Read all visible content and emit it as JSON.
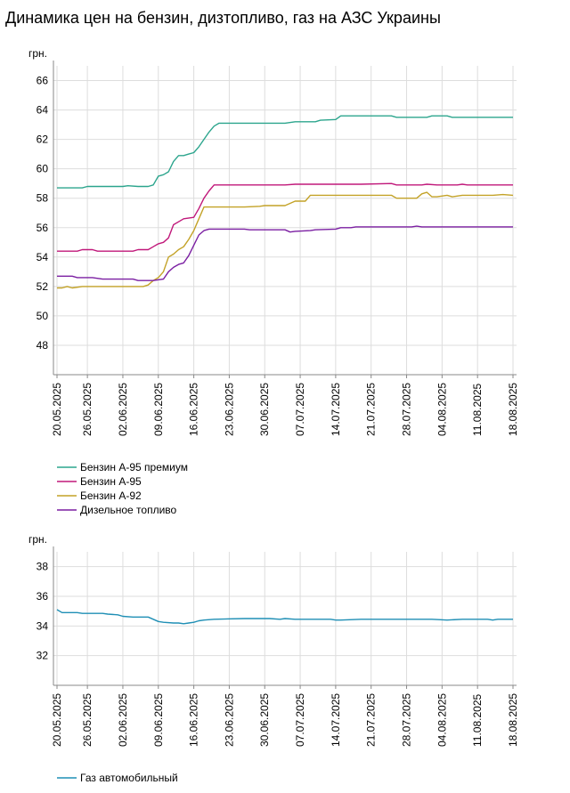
{
  "title": "Динамика цен на бензин, дизтопливо, газ на АЗС Украины",
  "chart_data": [
    {
      "type": "line",
      "ylabel": "грн.",
      "ylim": [
        46,
        67
      ],
      "yticks": [
        48,
        50,
        52,
        54,
        56,
        58,
        60,
        62,
        64,
        66
      ],
      "grid": true,
      "legend": "bottom-left",
      "x": [
        "20.05.2025",
        "26.05.2025",
        "02.06.2025",
        "09.06.2025",
        "16.06.2025",
        "23.06.2025",
        "30.06.2025",
        "07.07.2025",
        "14.07.2025",
        "21.07.2025",
        "28.07.2025",
        "04.08.2025",
        "11.08.2025",
        "18.08.2025"
      ],
      "series": [
        {
          "name": "Бензин А-95 премиум",
          "color": "#2ca58d",
          "points": [
            [
              0,
              58.7
            ],
            [
              2,
              58.7
            ],
            [
              5,
              58.7
            ],
            [
              6,
              58.8
            ],
            [
              10,
              58.8
            ],
            [
              13,
              58.8
            ],
            [
              14,
              58.85
            ],
            [
              16,
              58.8
            ],
            [
              17,
              58.8
            ],
            [
              18,
              58.8
            ],
            [
              19,
              58.9
            ],
            [
              20,
              59.5
            ],
            [
              21,
              59.6
            ],
            [
              22,
              59.8
            ],
            [
              23,
              60.5
            ],
            [
              24,
              60.9
            ],
            [
              25,
              60.9
            ],
            [
              26,
              61.0
            ],
            [
              27,
              61.1
            ],
            [
              28,
              61.5
            ],
            [
              29,
              62.0
            ],
            [
              30,
              62.5
            ],
            [
              31,
              62.9
            ],
            [
              32,
              63.1
            ],
            [
              37,
              63.1
            ],
            [
              40,
              63.1
            ],
            [
              45,
              63.1
            ],
            [
              47,
              63.2
            ],
            [
              51,
              63.2
            ],
            [
              52,
              63.3
            ],
            [
              55,
              63.35
            ],
            [
              56,
              63.6
            ],
            [
              60,
              63.6
            ],
            [
              66,
              63.6
            ],
            [
              67,
              63.5
            ],
            [
              73,
              63.5
            ],
            [
              74,
              63.6
            ],
            [
              77,
              63.6
            ],
            [
              78,
              63.5
            ],
            [
              90,
              63.5
            ]
          ]
        },
        {
          "name": "Бензин А-95",
          "color": "#c0187a",
          "points": [
            [
              0,
              54.4
            ],
            [
              4,
              54.4
            ],
            [
              5,
              54.5
            ],
            [
              7,
              54.5
            ],
            [
              8,
              54.4
            ],
            [
              15,
              54.4
            ],
            [
              16,
              54.5
            ],
            [
              18,
              54.5
            ],
            [
              19,
              54.7
            ],
            [
              20,
              54.9
            ],
            [
              21,
              55.0
            ],
            [
              22,
              55.3
            ],
            [
              23,
              56.2
            ],
            [
              24,
              56.4
            ],
            [
              25,
              56.6
            ],
            [
              27,
              56.7
            ],
            [
              28,
              57.3
            ],
            [
              29,
              58.0
            ],
            [
              30,
              58.5
            ],
            [
              31,
              58.9
            ],
            [
              37,
              58.9
            ],
            [
              45,
              58.9
            ],
            [
              47,
              58.95
            ],
            [
              51,
              58.95
            ],
            [
              55,
              58.95
            ],
            [
              56,
              58.95
            ],
            [
              60,
              58.95
            ],
            [
              66,
              59.0
            ],
            [
              67,
              58.9
            ],
            [
              72,
              58.9
            ],
            [
              73,
              58.95
            ],
            [
              75,
              58.9
            ],
            [
              79,
              58.9
            ],
            [
              80,
              58.95
            ],
            [
              81,
              58.9
            ],
            [
              90,
              58.9
            ]
          ]
        },
        {
          "name": "Бензин А-92",
          "color": "#c3a227",
          "points": [
            [
              0,
              51.9
            ],
            [
              1,
              51.9
            ],
            [
              2,
              52.0
            ],
            [
              3,
              51.9
            ],
            [
              5,
              52.0
            ],
            [
              17,
              52.0
            ],
            [
              18,
              52.1
            ],
            [
              19,
              52.4
            ],
            [
              20,
              52.6
            ],
            [
              21,
              53.0
            ],
            [
              22,
              54.0
            ],
            [
              23,
              54.2
            ],
            [
              24,
              54.5
            ],
            [
              25,
              54.7
            ],
            [
              26,
              55.2
            ],
            [
              27,
              55.8
            ],
            [
              28,
              56.6
            ],
            [
              29,
              57.4
            ],
            [
              31,
              57.4
            ],
            [
              37,
              57.4
            ],
            [
              40,
              57.45
            ],
            [
              41,
              57.5
            ],
            [
              45,
              57.5
            ],
            [
              47,
              57.8
            ],
            [
              48,
              57.8
            ],
            [
              49,
              57.8
            ],
            [
              50,
              58.2
            ],
            [
              55,
              58.2
            ],
            [
              60,
              58.2
            ],
            [
              66,
              58.2
            ],
            [
              67,
              58.0
            ],
            [
              71,
              58.0
            ],
            [
              72,
              58.3
            ],
            [
              73,
              58.4
            ],
            [
              74,
              58.1
            ],
            [
              75,
              58.1
            ],
            [
              77,
              58.2
            ],
            [
              78,
              58.1
            ],
            [
              80,
              58.2
            ],
            [
              86,
              58.2
            ],
            [
              88,
              58.25
            ],
            [
              90,
              58.2
            ]
          ]
        },
        {
          "name": "Дизельное топливо",
          "color": "#7b1fa2",
          "points": [
            [
              0,
              52.7
            ],
            [
              3,
              52.7
            ],
            [
              4,
              52.6
            ],
            [
              7,
              52.6
            ],
            [
              9,
              52.5
            ],
            [
              15,
              52.5
            ],
            [
              16,
              52.4
            ],
            [
              19,
              52.4
            ],
            [
              21,
              52.5
            ],
            [
              22,
              53.0
            ],
            [
              23,
              53.3
            ],
            [
              24,
              53.5
            ],
            [
              25,
              53.6
            ],
            [
              26,
              54.1
            ],
            [
              27,
              54.8
            ],
            [
              28,
              55.5
            ],
            [
              29,
              55.8
            ],
            [
              30,
              55.9
            ],
            [
              37,
              55.9
            ],
            [
              38,
              55.85
            ],
            [
              45,
              55.85
            ],
            [
              46,
              55.7
            ],
            [
              47,
              55.75
            ],
            [
              50,
              55.8
            ],
            [
              51,
              55.85
            ],
            [
              55,
              55.9
            ],
            [
              56,
              56.0
            ],
            [
              58,
              56.0
            ],
            [
              59,
              56.05
            ],
            [
              60,
              56.05
            ],
            [
              70,
              56.05
            ],
            [
              71,
              56.1
            ],
            [
              72,
              56.05
            ],
            [
              90,
              56.05
            ]
          ]
        }
      ]
    },
    {
      "type": "line",
      "ylabel": "грн.",
      "ylim": [
        30,
        39
      ],
      "yticks": [
        32,
        34,
        36,
        38
      ],
      "grid": true,
      "legend": "bottom-left",
      "x": [
        "20.05.2025",
        "26.05.2025",
        "02.06.2025",
        "09.06.2025",
        "16.06.2025",
        "23.06.2025",
        "30.06.2025",
        "07.07.2025",
        "14.07.2025",
        "21.07.2025",
        "28.07.2025",
        "04.08.2025",
        "11.08.2025",
        "18.08.2025"
      ],
      "series": [
        {
          "name": "Газ автомобильный",
          "color": "#1f8fb5",
          "points": [
            [
              0,
              35.1
            ],
            [
              1,
              34.9
            ],
            [
              4,
              34.9
            ],
            [
              5,
              34.85
            ],
            [
              9,
              34.85
            ],
            [
              10,
              34.8
            ],
            [
              12,
              34.75
            ],
            [
              13,
              34.65
            ],
            [
              15,
              34.6
            ],
            [
              16,
              34.6
            ],
            [
              18,
              34.6
            ],
            [
              19,
              34.45
            ],
            [
              20,
              34.3
            ],
            [
              21,
              34.25
            ],
            [
              23,
              34.2
            ],
            [
              24,
              34.2
            ],
            [
              25,
              34.15
            ],
            [
              26,
              34.2
            ],
            [
              27,
              34.25
            ],
            [
              28,
              34.35
            ],
            [
              29,
              34.4
            ],
            [
              31,
              34.45
            ],
            [
              37,
              34.5
            ],
            [
              42,
              34.5
            ],
            [
              44,
              34.45
            ],
            [
              45,
              34.5
            ],
            [
              47,
              34.45
            ],
            [
              50,
              34.45
            ],
            [
              54,
              34.45
            ],
            [
              55,
              34.4
            ],
            [
              56,
              34.4
            ],
            [
              60,
              34.45
            ],
            [
              70,
              34.45
            ],
            [
              73,
              34.45
            ],
            [
              74,
              34.45
            ],
            [
              77,
              34.4
            ],
            [
              80,
              34.45
            ],
            [
              82,
              34.45
            ],
            [
              85,
              34.45
            ],
            [
              86,
              34.4
            ],
            [
              87,
              34.45
            ],
            [
              90,
              34.45
            ]
          ]
        }
      ]
    }
  ]
}
